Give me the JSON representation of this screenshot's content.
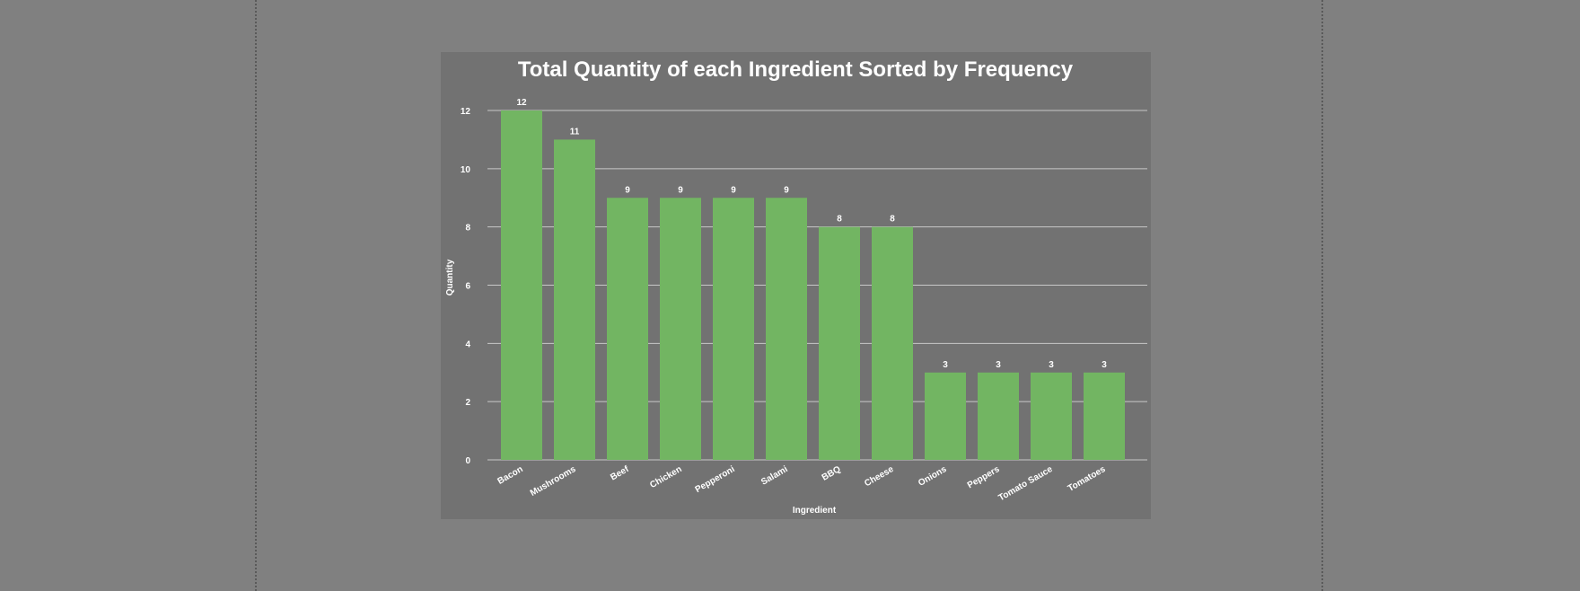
{
  "chart_data": {
    "type": "bar",
    "title": "Total Quantity of each Ingredient Sorted by Frequency",
    "xlabel": "Ingredient",
    "ylabel": "Quantity",
    "categories": [
      "Bacon",
      "Mushrooms",
      "Beef",
      "Chicken",
      "Pepperoni",
      "Salami",
      "BBQ",
      "Cheese",
      "Onions",
      "Peppers",
      "Tomato Sauce",
      "Tomatoes"
    ],
    "values": [
      12,
      11,
      9,
      9,
      9,
      9,
      8,
      8,
      3,
      3,
      3,
      3
    ],
    "ylim": [
      0,
      12
    ],
    "yticks": [
      0,
      2,
      4,
      6,
      8,
      10,
      12
    ],
    "grid": true,
    "legend": "none",
    "data_labels": true,
    "colors": {
      "bar": "#72b562",
      "background": "#727272",
      "page": "#808080",
      "grid": "#c8c8c8",
      "text": "#ffffff"
    }
  }
}
